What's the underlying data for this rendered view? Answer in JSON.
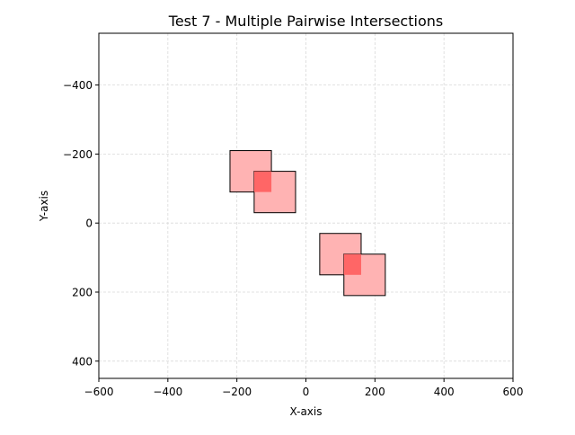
{
  "chart_data": {
    "type": "rectangles",
    "title": "Test 7 - Multiple Pairwise Intersections",
    "xlabel": "X-axis",
    "ylabel": "Y-axis",
    "xlim": [
      -600,
      600
    ],
    "ylim": [
      450,
      -550
    ],
    "y_inverted": true,
    "grid": true,
    "x_ticks": [
      -600,
      -400,
      -200,
      0,
      200,
      400,
      600
    ],
    "y_ticks": [
      -400,
      -200,
      0,
      200,
      400
    ],
    "x_tick_labels": [
      "−600",
      "−400",
      "−200",
      "0",
      "200",
      "400",
      "600"
    ],
    "y_tick_labels": [
      "−400",
      "−200",
      "0",
      "200",
      "400"
    ],
    "rectangles": [
      {
        "x": -220,
        "y": -210,
        "width": 120,
        "height": 120
      },
      {
        "x": -150,
        "y": -150,
        "width": 120,
        "height": 120
      },
      {
        "x": 40,
        "y": 30,
        "width": 120,
        "height": 120
      },
      {
        "x": 110,
        "y": 90,
        "width": 120,
        "height": 120
      }
    ],
    "intersections": [
      {
        "x": -150,
        "y": -150,
        "width": 50,
        "height": 60
      },
      {
        "x": 110,
        "y": 90,
        "width": 50,
        "height": 60
      }
    ],
    "colors": {
      "rect_fill": "#ffb3b3",
      "rect_edge": "#000000",
      "intersection_fill": "#ff6666",
      "grid": "#d9d9d9"
    }
  }
}
